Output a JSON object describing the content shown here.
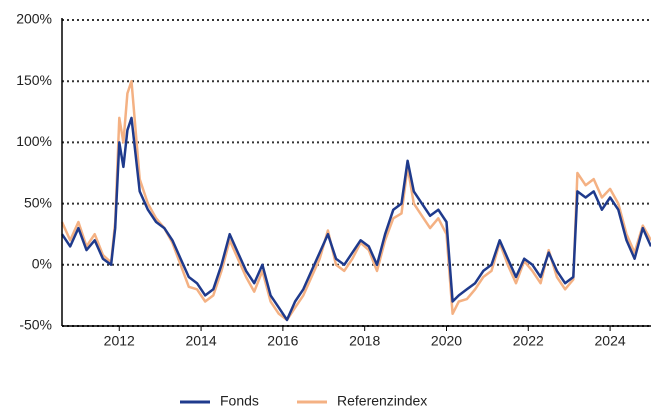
{
  "chart_data": {
    "type": "line",
    "x": [
      2010.6,
      2010.8,
      2011.0,
      2011.2,
      2011.4,
      2011.6,
      2011.8,
      2011.9,
      2012.0,
      2012.1,
      2012.2,
      2012.3,
      2012.4,
      2012.5,
      2012.7,
      2012.9,
      2013.1,
      2013.3,
      2013.5,
      2013.7,
      2013.9,
      2014.1,
      2014.3,
      2014.5,
      2014.7,
      2014.9,
      2015.1,
      2015.3,
      2015.5,
      2015.7,
      2015.9,
      2016.1,
      2016.3,
      2016.5,
      2016.7,
      2016.9,
      2017.1,
      2017.3,
      2017.5,
      2017.7,
      2017.9,
      2018.1,
      2018.3,
      2018.5,
      2018.7,
      2018.9,
      2019.05,
      2019.2,
      2019.4,
      2019.6,
      2019.8,
      2020.0,
      2020.15,
      2020.3,
      2020.5,
      2020.7,
      2020.9,
      2021.1,
      2021.3,
      2021.5,
      2021.7,
      2021.9,
      2022.1,
      2022.3,
      2022.5,
      2022.7,
      2022.9,
      2023.1,
      2023.2,
      2023.4,
      2023.6,
      2023.8,
      2024.0,
      2024.2,
      2024.4,
      2024.6,
      2024.8,
      2025.0
    ],
    "series": [
      {
        "name": "Fonds",
        "color": "#1f3a8c",
        "values": [
          25,
          15,
          30,
          12,
          20,
          5,
          0,
          30,
          100,
          80,
          110,
          120,
          90,
          60,
          45,
          35,
          30,
          20,
          5,
          -10,
          -15,
          -25,
          -20,
          0,
          25,
          10,
          -5,
          -15,
          0,
          -25,
          -35,
          -45,
          -30,
          -20,
          -5,
          10,
          25,
          5,
          0,
          10,
          20,
          15,
          0,
          25,
          45,
          50,
          85,
          60,
          50,
          40,
          45,
          35,
          -30,
          -25,
          -20,
          -15,
          -5,
          0,
          20,
          5,
          -10,
          5,
          0,
          -10,
          10,
          -5,
          -15,
          -10,
          60,
          55,
          60,
          45,
          55,
          45,
          20,
          5,
          30,
          15
        ]
      },
      {
        "name": "Referenzindex",
        "color": "#f4b183",
        "values": [
          35,
          20,
          35,
          15,
          25,
          8,
          2,
          35,
          120,
          100,
          140,
          150,
          110,
          70,
          50,
          38,
          30,
          18,
          0,
          -18,
          -20,
          -30,
          -25,
          -5,
          20,
          5,
          -10,
          -22,
          -5,
          -30,
          -40,
          -45,
          -35,
          -25,
          -10,
          5,
          28,
          0,
          -5,
          5,
          18,
          12,
          -5,
          20,
          38,
          42,
          80,
          50,
          40,
          30,
          38,
          25,
          -40,
          -30,
          -28,
          -20,
          -10,
          -5,
          18,
          0,
          -15,
          3,
          -5,
          -15,
          12,
          -10,
          -20,
          -12,
          75,
          65,
          70,
          55,
          62,
          50,
          25,
          10,
          32,
          20
        ]
      }
    ],
    "xlim": [
      2010.6,
      2025.0
    ],
    "xticks": [
      2012,
      2014,
      2016,
      2018,
      2020,
      2022,
      2024
    ],
    "ylim": [
      -50,
      200
    ],
    "yticks": [
      {
        "value": -50,
        "label": "-50%"
      },
      {
        "value": 0,
        "label": "0%"
      },
      {
        "value": 50,
        "label": "50%"
      },
      {
        "value": 100,
        "label": "100%"
      },
      {
        "value": 150,
        "label": "150%"
      },
      {
        "value": 200,
        "label": "200%"
      }
    ],
    "grid": true,
    "legend": "bottom"
  }
}
